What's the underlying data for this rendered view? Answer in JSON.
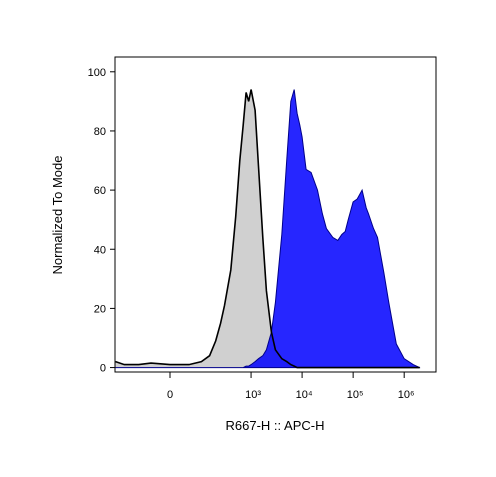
{
  "chart_data": {
    "type": "histogram-overlay",
    "x_label": "R667-H :: APC-H",
    "y_label": "Normalized To Mode",
    "xscale": "biexponential",
    "x": [
      -300,
      -200,
      -100,
      -50,
      0,
      50,
      100,
      150,
      200,
      250,
      300,
      400,
      500,
      600,
      700,
      800,
      900,
      1000,
      1200,
      1400,
      1700,
      2000,
      2500,
      3000,
      4000,
      5000,
      6000,
      7000,
      8000,
      9000,
      10000,
      12000,
      15000,
      20000,
      25000,
      30000,
      40000,
      50000,
      60000,
      70000,
      80000,
      100000,
      120000,
      150000,
      180000,
      200000,
      250000,
      300000,
      400000,
      500000,
      700000,
      1000000,
      1500000,
      2000000
    ],
    "series": [
      {
        "color": "#c8c8c8",
        "values": [
          2,
          1,
          1,
          1.5,
          1,
          1,
          2,
          4,
          9,
          15,
          21,
          33,
          51,
          70,
          82,
          93,
          90,
          94,
          87,
          68,
          44,
          26,
          12,
          6,
          3,
          2,
          1,
          0.5,
          0,
          0,
          0,
          0,
          0,
          0,
          0,
          0,
          0,
          0,
          0,
          0,
          0,
          0,
          0,
          0,
          0,
          0,
          0,
          0,
          0,
          0,
          0,
          0,
          0,
          0
        ]
      },
      {
        "color": "#0000ff",
        "values": [
          0,
          0,
          0,
          0,
          0,
          0,
          0,
          0,
          0,
          0,
          0,
          0,
          0,
          0,
          0,
          0.5,
          0.5,
          1,
          2,
          3,
          4,
          6,
          12,
          22,
          45,
          70,
          90,
          94,
          86,
          82,
          78,
          67,
          66,
          60,
          52,
          47,
          44,
          43,
          45,
          46,
          50,
          56,
          57,
          60,
          54,
          52,
          47,
          44,
          32,
          22,
          8,
          3,
          1,
          0
        ]
      }
    ],
    "xlim": [
      -307,
      4200000
    ],
    "xticks": [
      0,
      {
        "value": 1000,
        "label": "10³"
      },
      {
        "value": 10000,
        "label": "10⁴"
      },
      {
        "value": 100000,
        "label": "10⁵"
      },
      {
        "value": 1000000,
        "label": "10⁶"
      }
    ],
    "ylim": [
      -1.5,
      105
    ],
    "yticks": [
      0,
      20,
      40,
      60,
      80,
      100
    ]
  }
}
